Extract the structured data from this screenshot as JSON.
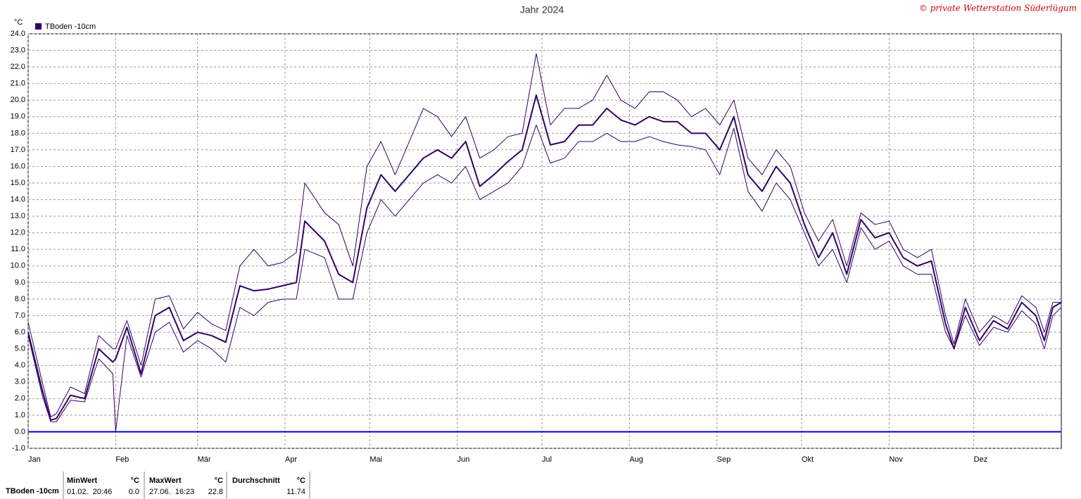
{
  "chart_data": {
    "type": "line",
    "title": "Jahr 2024",
    "credit": "© private Wetterstation Süderlügum",
    "y_unit": "°C",
    "x": [
      0,
      5,
      8,
      10,
      15,
      20,
      25,
      30,
      31,
      35,
      40,
      45,
      50,
      55,
      60,
      65,
      70,
      75,
      80,
      85,
      90,
      95,
      98,
      105,
      110,
      115,
      120,
      125,
      130,
      135,
      140,
      145,
      150,
      155,
      160,
      165,
      170,
      175,
      180,
      185,
      190,
      195,
      200,
      205,
      210,
      215,
      220,
      225,
      230,
      235,
      240,
      245,
      250,
      255,
      260,
      265,
      270,
      275,
      280,
      285,
      290,
      295,
      300,
      305,
      310,
      315,
      320,
      325,
      328,
      332,
      337,
      342,
      347,
      352,
      357,
      360,
      363,
      366
    ],
    "series": [
      {
        "name": "TBoden -10cm",
        "color": "#330066",
        "width": 2,
        "values": [
          6.0,
          2.5,
          0.7,
          0.8,
          2.2,
          2.0,
          5.0,
          4.2,
          4.4,
          6.3,
          3.5,
          7.0,
          7.5,
          5.5,
          6.0,
          5.8,
          5.4,
          8.8,
          8.5,
          8.6,
          8.8,
          9.0,
          12.7,
          11.5,
          9.5,
          9.0,
          13.5,
          15.5,
          14.5,
          15.5,
          16.5,
          17.0,
          16.5,
          17.5,
          14.8,
          15.5,
          16.3,
          17.0,
          20.3,
          17.3,
          17.5,
          18.5,
          18.5,
          19.5,
          18.8,
          18.5,
          19.0,
          18.7,
          18.7,
          18.0,
          18.0,
          17.0,
          19.0,
          15.5,
          14.5,
          16.0,
          15.0,
          12.5,
          10.5,
          12.0,
          9.5,
          12.8,
          11.7,
          12.0,
          10.5,
          10.0,
          10.3,
          6.5,
          5.0,
          7.5,
          5.5,
          6.7,
          6.2,
          7.8,
          7.0,
          5.5,
          7.5,
          7.8
        ]
      },
      {
        "color": "#330066",
        "width": 1,
        "values": [
          6.6,
          3.0,
          0.9,
          1.1,
          2.7,
          2.3,
          5.8,
          5.0,
          5.0,
          6.7,
          4.0,
          8.0,
          8.2,
          6.2,
          7.2,
          6.5,
          6.1,
          10.0,
          11.0,
          10.0,
          10.2,
          10.8,
          15.0,
          13.2,
          12.5,
          10.0,
          16.0,
          17.5,
          15.5,
          17.5,
          19.5,
          19.0,
          17.8,
          19.0,
          16.5,
          17.0,
          17.8,
          18.0,
          22.8,
          18.5,
          19.5,
          19.5,
          20.0,
          21.5,
          20.0,
          19.5,
          20.5,
          20.5,
          20.0,
          19.0,
          19.5,
          18.5,
          20.0,
          16.5,
          15.5,
          17.0,
          16.0,
          13.2,
          11.5,
          12.8,
          10.0,
          13.2,
          12.5,
          12.7,
          11.0,
          10.5,
          11.0,
          7.0,
          5.3,
          8.0,
          6.0,
          7.0,
          6.5,
          8.2,
          7.5,
          6.0,
          7.8,
          7.8
        ]
      },
      {
        "color": "#330066",
        "width": 1,
        "values": [
          5.8,
          2.2,
          0.6,
          0.6,
          1.9,
          1.8,
          4.4,
          3.5,
          0.0,
          5.8,
          3.3,
          6.0,
          6.6,
          4.8,
          5.5,
          5.0,
          4.2,
          7.5,
          7.0,
          7.8,
          8.0,
          8.0,
          11.0,
          10.5,
          8.0,
          8.0,
          12.0,
          14.0,
          13.0,
          14.0,
          15.0,
          15.5,
          15.0,
          16.0,
          14.0,
          14.5,
          15.0,
          16.0,
          18.5,
          16.2,
          16.5,
          17.5,
          17.5,
          18.0,
          17.5,
          17.5,
          17.8,
          17.5,
          17.3,
          17.2,
          17.0,
          15.5,
          18.3,
          14.5,
          13.3,
          15.0,
          14.0,
          12.0,
          10.0,
          11.0,
          9.0,
          12.3,
          11.0,
          11.5,
          10.0,
          9.5,
          9.5,
          6.0,
          5.0,
          7.0,
          5.2,
          6.3,
          6.0,
          7.3,
          6.5,
          5.0,
          7.0,
          7.5
        ]
      }
    ],
    "xlim": [
      0,
      366
    ],
    "xticks": [
      {
        "value": 0,
        "label": "Jan"
      },
      {
        "value": 31,
        "label": "Feb"
      },
      {
        "value": 60,
        "label": "Mär"
      },
      {
        "value": 91,
        "label": "Apr"
      },
      {
        "value": 121,
        "label": "Mai"
      },
      {
        "value": 152,
        "label": "Jun"
      },
      {
        "value": 182,
        "label": "Jul"
      },
      {
        "value": 213,
        "label": "Aug"
      },
      {
        "value": 244,
        "label": "Sep"
      },
      {
        "value": 274,
        "label": "Okt"
      },
      {
        "value": 305,
        "label": "Nov"
      },
      {
        "value": 335,
        "label": "Dez"
      }
    ],
    "ylim": [
      -1,
      24
    ],
    "yticks": [
      {
        "value": -1,
        "label": "-1.0"
      },
      {
        "value": 0,
        "label": "0.0"
      },
      {
        "value": 1,
        "label": "1.0"
      },
      {
        "value": 2,
        "label": "2.0"
      },
      {
        "value": 3,
        "label": "3.0"
      },
      {
        "value": 4,
        "label": "4.0"
      },
      {
        "value": 5,
        "label": "5.0"
      },
      {
        "value": 6,
        "label": "6.0"
      },
      {
        "value": 7,
        "label": "7.0"
      },
      {
        "value": 8,
        "label": "8.0"
      },
      {
        "value": 9,
        "label": "9.0"
      },
      {
        "value": 10,
        "label": "10.0"
      },
      {
        "value": 11,
        "label": "11.0"
      },
      {
        "value": 12,
        "label": "12.0"
      },
      {
        "value": 13,
        "label": "13.0"
      },
      {
        "value": 14,
        "label": "14.0"
      },
      {
        "value": 15,
        "label": "15.0"
      },
      {
        "value": 16,
        "label": "16.0"
      },
      {
        "value": 17,
        "label": "17.0"
      },
      {
        "value": 18,
        "label": "18.0"
      },
      {
        "value": 19,
        "label": "19.0"
      },
      {
        "value": 20,
        "label": "20.0"
      },
      {
        "value": 21,
        "label": "21.0"
      },
      {
        "value": 22,
        "label": "22.0"
      },
      {
        "value": 23,
        "label": "23.0"
      },
      {
        "value": 24,
        "label": "24.0"
      }
    ],
    "grid": true,
    "reference_line": {
      "value": 0,
      "color": "#0000cc"
    }
  },
  "footer": {
    "row_label": "TBoden -10cm",
    "cells": [
      {
        "header": "MinWert",
        "unit": "°C",
        "time": "01.02.  20:46",
        "value": "0.0"
      },
      {
        "header": "MaxWert",
        "unit": "°C",
        "time": "27.06.  16:23",
        "value": "22.8"
      },
      {
        "header": "Durchschnitt",
        "unit": "°C",
        "value": "11.74"
      }
    ]
  }
}
